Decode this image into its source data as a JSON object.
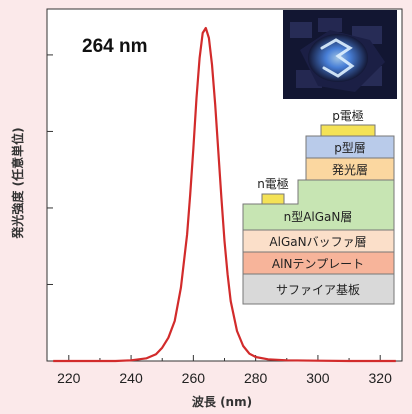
{
  "chart_data": {
    "type": "line",
    "title": "",
    "xlabel": "波長 (nm)",
    "ylabel": "発光強度 (任意単位)",
    "xlim": [
      213,
      327
    ],
    "ylim": [
      0,
      1
    ],
    "xticks": [
      220,
      240,
      260,
      280,
      300,
      320
    ],
    "y_ticks_labeled": false,
    "grid": false,
    "annotation": "264 nm",
    "series": [
      {
        "color": "#d22b2b",
        "x": [
          215,
          225,
          235,
          240,
          245,
          248,
          250,
          252,
          254,
          256,
          258,
          259,
          260,
          261,
          262,
          263,
          264,
          265,
          266,
          267,
          268,
          269,
          270,
          271,
          272,
          274,
          276,
          278,
          280,
          284,
          290,
          300,
          310,
          320,
          325
        ],
        "y": [
          0.0,
          0.0,
          0.0,
          0.002,
          0.008,
          0.02,
          0.04,
          0.07,
          0.12,
          0.22,
          0.38,
          0.5,
          0.64,
          0.79,
          0.91,
          0.985,
          1.0,
          0.97,
          0.89,
          0.77,
          0.63,
          0.49,
          0.36,
          0.26,
          0.18,
          0.09,
          0.045,
          0.022,
          0.012,
          0.005,
          0.002,
          0.001,
          0.0,
          0.0,
          0.0
        ]
      }
    ]
  },
  "layer_stack": {
    "layers": [
      {
        "name": "p電極",
        "color": "#f4e256"
      },
      {
        "name": "p型層",
        "color": "#b9cbea"
      },
      {
        "name": "発光層",
        "color": "#fbd7a0"
      },
      {
        "name": "n電極",
        "color": "#f4e256"
      },
      {
        "name": "n型AlGaN層",
        "color": "#c7e5b3"
      },
      {
        "name": "AlGaNバッファ層",
        "color": "#fbdfc9"
      },
      {
        "name": "AlNテンプレート",
        "color": "#f7b49a"
      },
      {
        "name": "サファイア基板",
        "color": "#d9d9d9"
      }
    ]
  },
  "colors": {
    "background": "#fbe9ea",
    "curve": "#d22b2b",
    "photo_dark": "#121632",
    "photo_glow": "#4f8ff0"
  }
}
